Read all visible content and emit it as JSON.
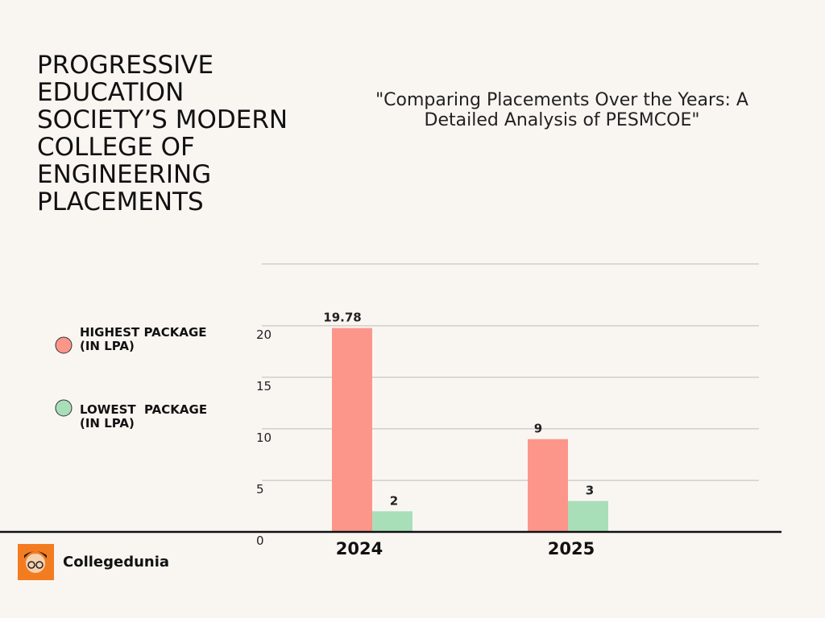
{
  "chart_data": {
    "type": "bar",
    "title": "PROGRESSIVE EDUCATION SOCIETY’S MODERN COLLEGE OF ENGINEERING PLACEMENTS",
    "subtitle": "\"Comparing Placements Over the Years: A Detailed Analysis of PESMCOE\"",
    "categories": [
      "2024",
      "2025"
    ],
    "series": [
      {
        "name": "HIGHEST PACKAGE (IN LPA)",
        "color": "#fd968a",
        "values": [
          19.78,
          9
        ]
      },
      {
        "name": "LOWEST  PACKAGE (IN LPA)",
        "color": "#a8dfb9",
        "values": [
          2,
          3
        ]
      }
    ],
    "ylim": [
      0,
      26
    ],
    "yticks": [
      0,
      5,
      10,
      15,
      20
    ],
    "grid": true,
    "legend": "left"
  },
  "brand": "Collegedunia"
}
